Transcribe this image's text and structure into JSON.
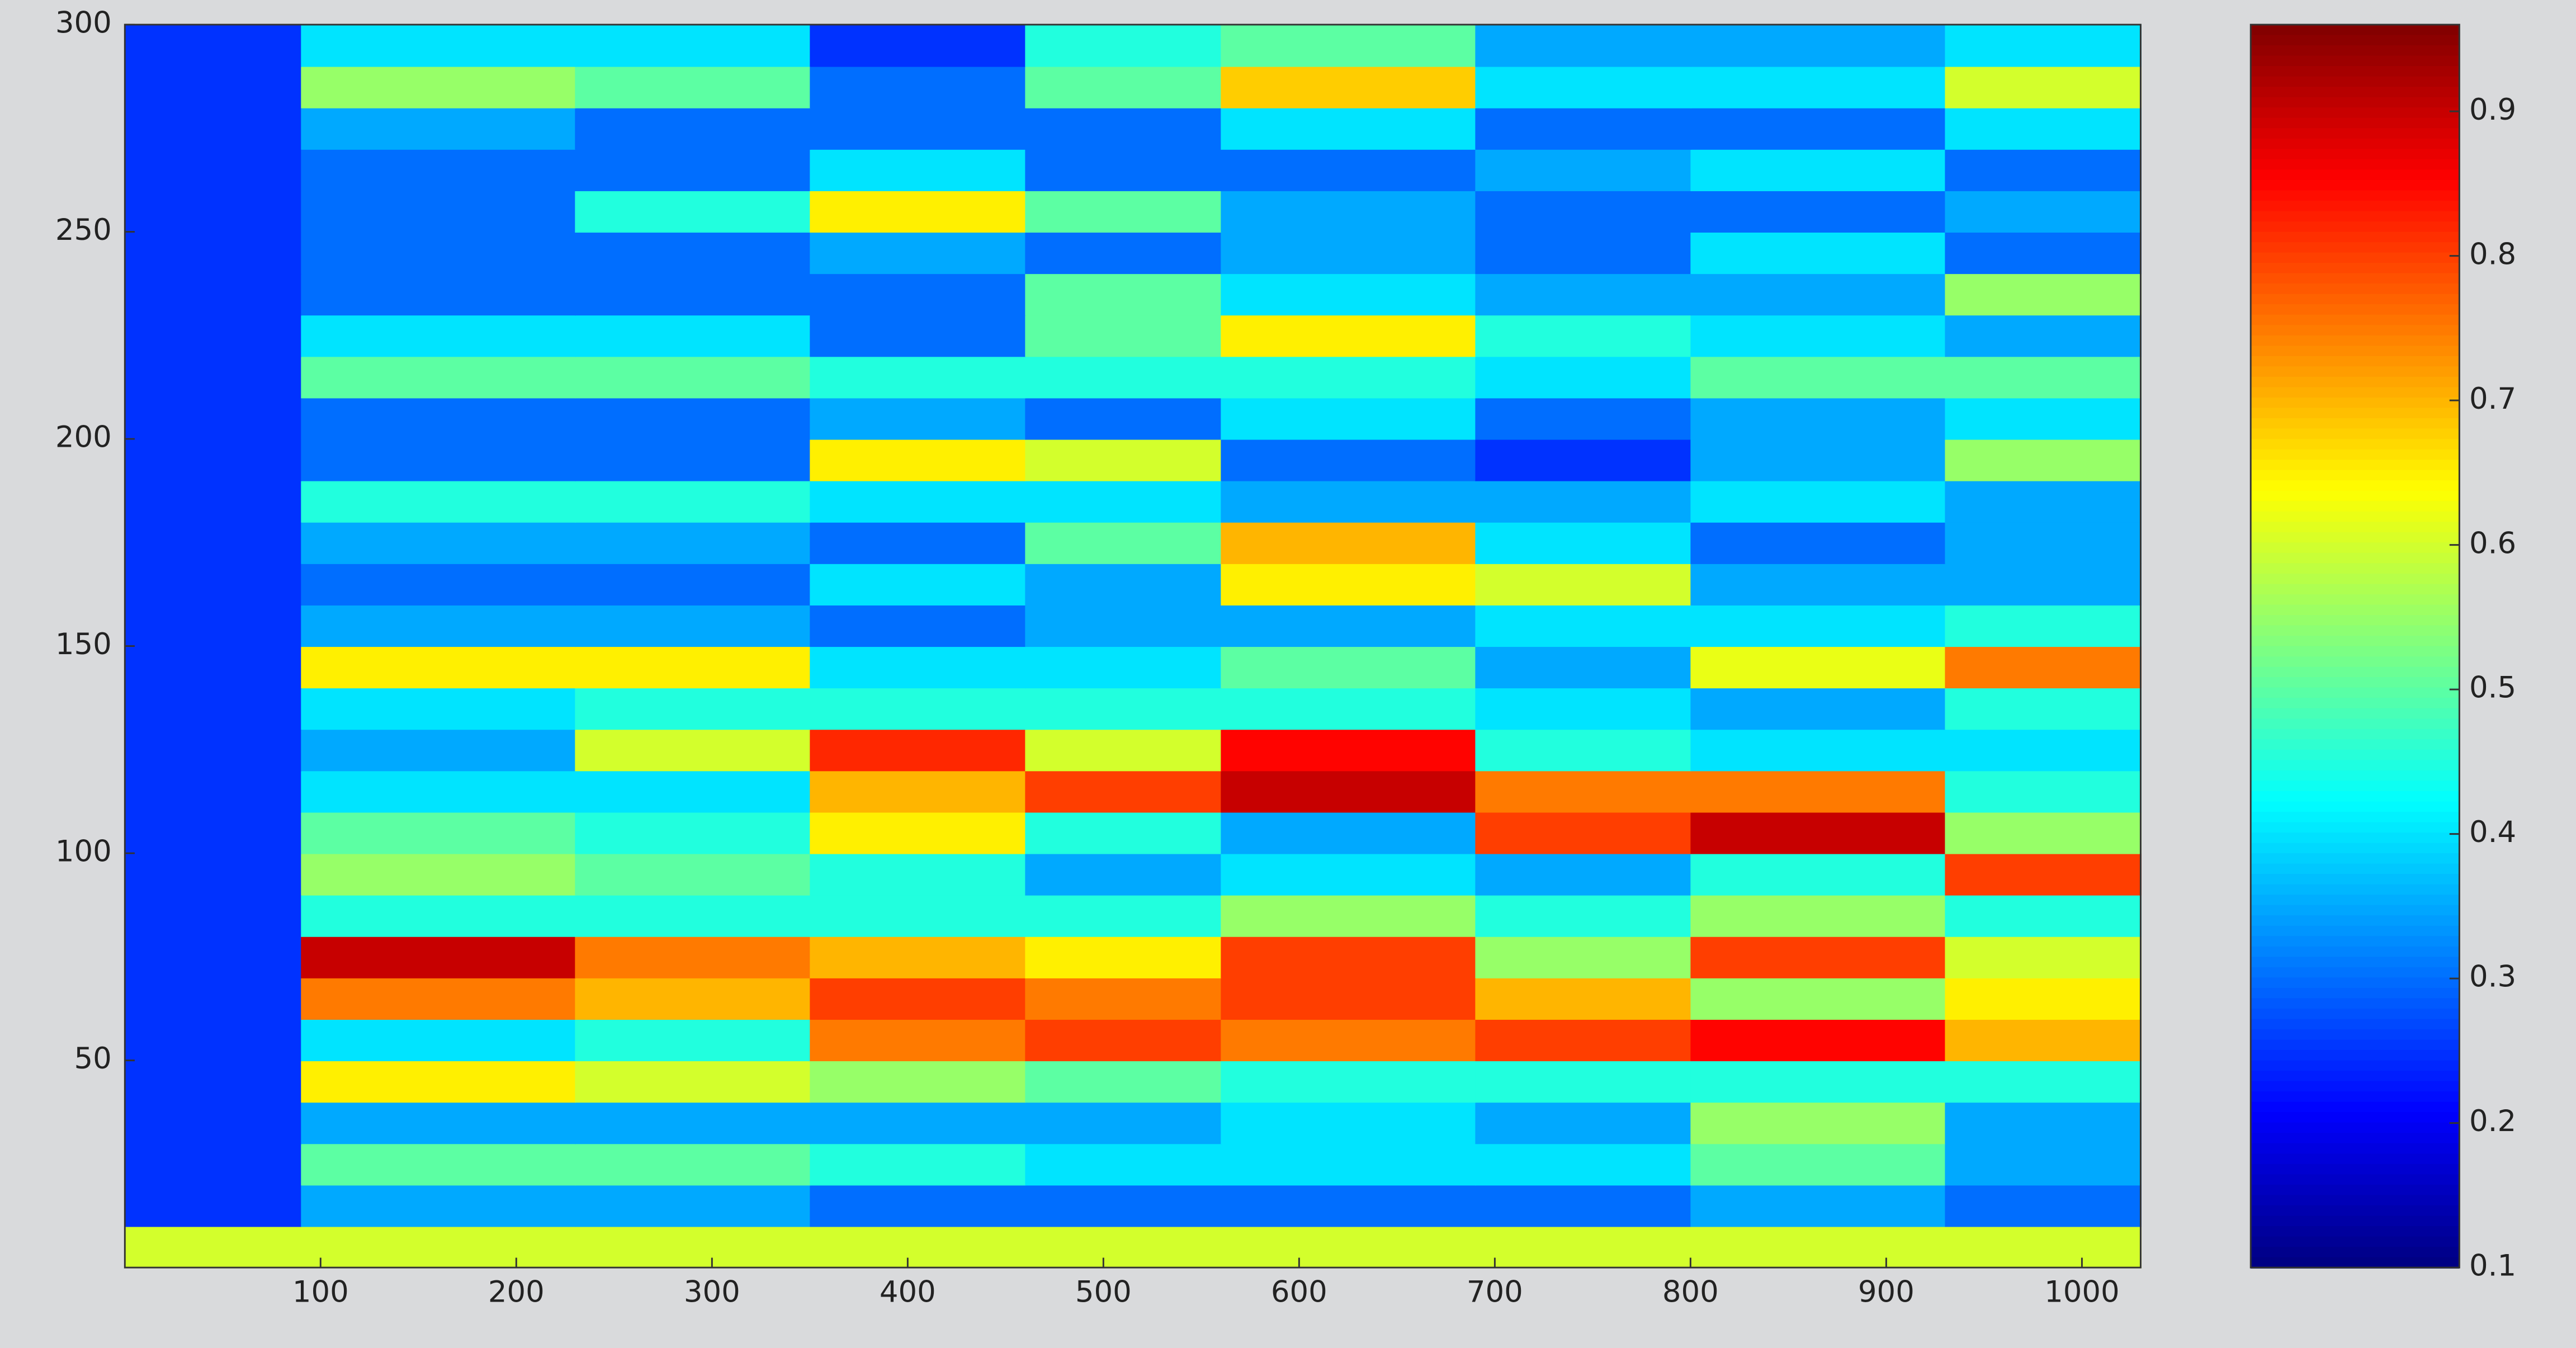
{
  "chart_data": {
    "type": "heatmap",
    "colormap": "jet",
    "xbins": [
      0,
      90,
      230,
      350,
      460,
      560,
      690,
      800,
      930,
      1030
    ],
    "ybins": [
      0,
      10,
      20,
      30,
      40,
      50,
      60,
      70,
      80,
      90,
      100,
      110,
      120,
      130,
      140,
      150,
      160,
      170,
      180,
      190,
      200,
      210,
      220,
      230,
      240,
      250,
      260,
      270,
      280,
      290,
      300
    ],
    "values": [
      [
        0.6,
        0.6,
        0.6,
        0.6,
        0.6,
        0.6,
        0.6,
        0.6,
        0.6
      ],
      [
        0.25,
        0.35,
        0.35,
        0.3,
        0.3,
        0.3,
        0.3,
        0.35,
        0.3
      ],
      [
        0.25,
        0.5,
        0.5,
        0.45,
        0.4,
        0.4,
        0.4,
        0.5,
        0.35
      ],
      [
        0.25,
        0.35,
        0.35,
        0.35,
        0.35,
        0.4,
        0.35,
        0.55,
        0.35
      ],
      [
        0.25,
        0.65,
        0.6,
        0.55,
        0.5,
        0.45,
        0.45,
        0.45,
        0.45
      ],
      [
        0.25,
        0.4,
        0.45,
        0.75,
        0.8,
        0.75,
        0.8,
        0.85,
        0.7
      ],
      [
        0.25,
        0.75,
        0.7,
        0.8,
        0.75,
        0.8,
        0.7,
        0.55,
        0.65
      ],
      [
        0.25,
        0.9,
        0.75,
        0.7,
        0.65,
        0.8,
        0.55,
        0.8,
        0.6
      ],
      [
        0.25,
        0.45,
        0.45,
        0.45,
        0.45,
        0.55,
        0.45,
        0.55,
        0.45
      ],
      [
        0.25,
        0.55,
        0.5,
        0.45,
        0.35,
        0.4,
        0.35,
        0.45,
        0.8
      ],
      [
        0.25,
        0.5,
        0.45,
        0.65,
        0.45,
        0.35,
        0.8,
        0.9,
        0.55
      ],
      [
        0.25,
        0.4,
        0.4,
        0.7,
        0.8,
        0.9,
        0.75,
        0.75,
        0.45
      ],
      [
        0.25,
        0.35,
        0.6,
        0.82,
        0.6,
        0.85,
        0.45,
        0.4,
        0.4
      ],
      [
        0.25,
        0.4,
        0.45,
        0.45,
        0.45,
        0.45,
        0.4,
        0.35,
        0.45
      ],
      [
        0.25,
        0.65,
        0.65,
        0.4,
        0.4,
        0.5,
        0.35,
        0.62,
        0.75
      ],
      [
        0.25,
        0.35,
        0.35,
        0.3,
        0.35,
        0.35,
        0.4,
        0.4,
        0.45
      ],
      [
        0.25,
        0.3,
        0.3,
        0.4,
        0.35,
        0.65,
        0.6,
        0.35,
        0.35
      ],
      [
        0.25,
        0.35,
        0.35,
        0.3,
        0.5,
        0.7,
        0.4,
        0.3,
        0.35
      ],
      [
        0.25,
        0.45,
        0.45,
        0.4,
        0.4,
        0.35,
        0.35,
        0.4,
        0.35
      ],
      [
        0.25,
        0.3,
        0.3,
        0.65,
        0.6,
        0.3,
        0.25,
        0.35,
        0.55
      ],
      [
        0.25,
        0.3,
        0.3,
        0.35,
        0.3,
        0.4,
        0.3,
        0.35,
        0.4
      ],
      [
        0.25,
        0.5,
        0.5,
        0.45,
        0.45,
        0.45,
        0.4,
        0.5,
        0.5
      ],
      [
        0.25,
        0.4,
        0.4,
        0.3,
        0.5,
        0.65,
        0.45,
        0.4,
        0.35
      ],
      [
        0.25,
        0.3,
        0.3,
        0.3,
        0.5,
        0.4,
        0.35,
        0.35,
        0.55
      ],
      [
        0.25,
        0.3,
        0.3,
        0.35,
        0.3,
        0.35,
        0.3,
        0.4,
        0.3
      ],
      [
        0.25,
        0.3,
        0.45,
        0.65,
        0.5,
        0.35,
        0.3,
        0.3,
        0.35
      ],
      [
        0.25,
        0.3,
        0.3,
        0.4,
        0.3,
        0.3,
        0.35,
        0.4,
        0.3
      ],
      [
        0.25,
        0.35,
        0.3,
        0.3,
        0.3,
        0.4,
        0.3,
        0.3,
        0.4
      ],
      [
        0.25,
        0.55,
        0.5,
        0.3,
        0.5,
        0.68,
        0.4,
        0.4,
        0.6
      ],
      [
        0.25,
        0.4,
        0.4,
        0.25,
        0.45,
        0.5,
        0.35,
        0.35,
        0.4
      ]
    ],
    "xlim": [
      0,
      1030
    ],
    "xticks": [
      100,
      200,
      300,
      400,
      500,
      600,
      700,
      800,
      900,
      1000
    ],
    "ylim": [
      0,
      300
    ],
    "yticks": [
      50,
      100,
      150,
      200,
      250,
      300
    ],
    "clim": [
      0.1,
      0.96
    ],
    "colorbar_ticks": [
      0.1,
      0.2,
      0.3,
      0.4,
      0.5,
      0.6,
      0.7,
      0.8,
      0.9
    ]
  }
}
